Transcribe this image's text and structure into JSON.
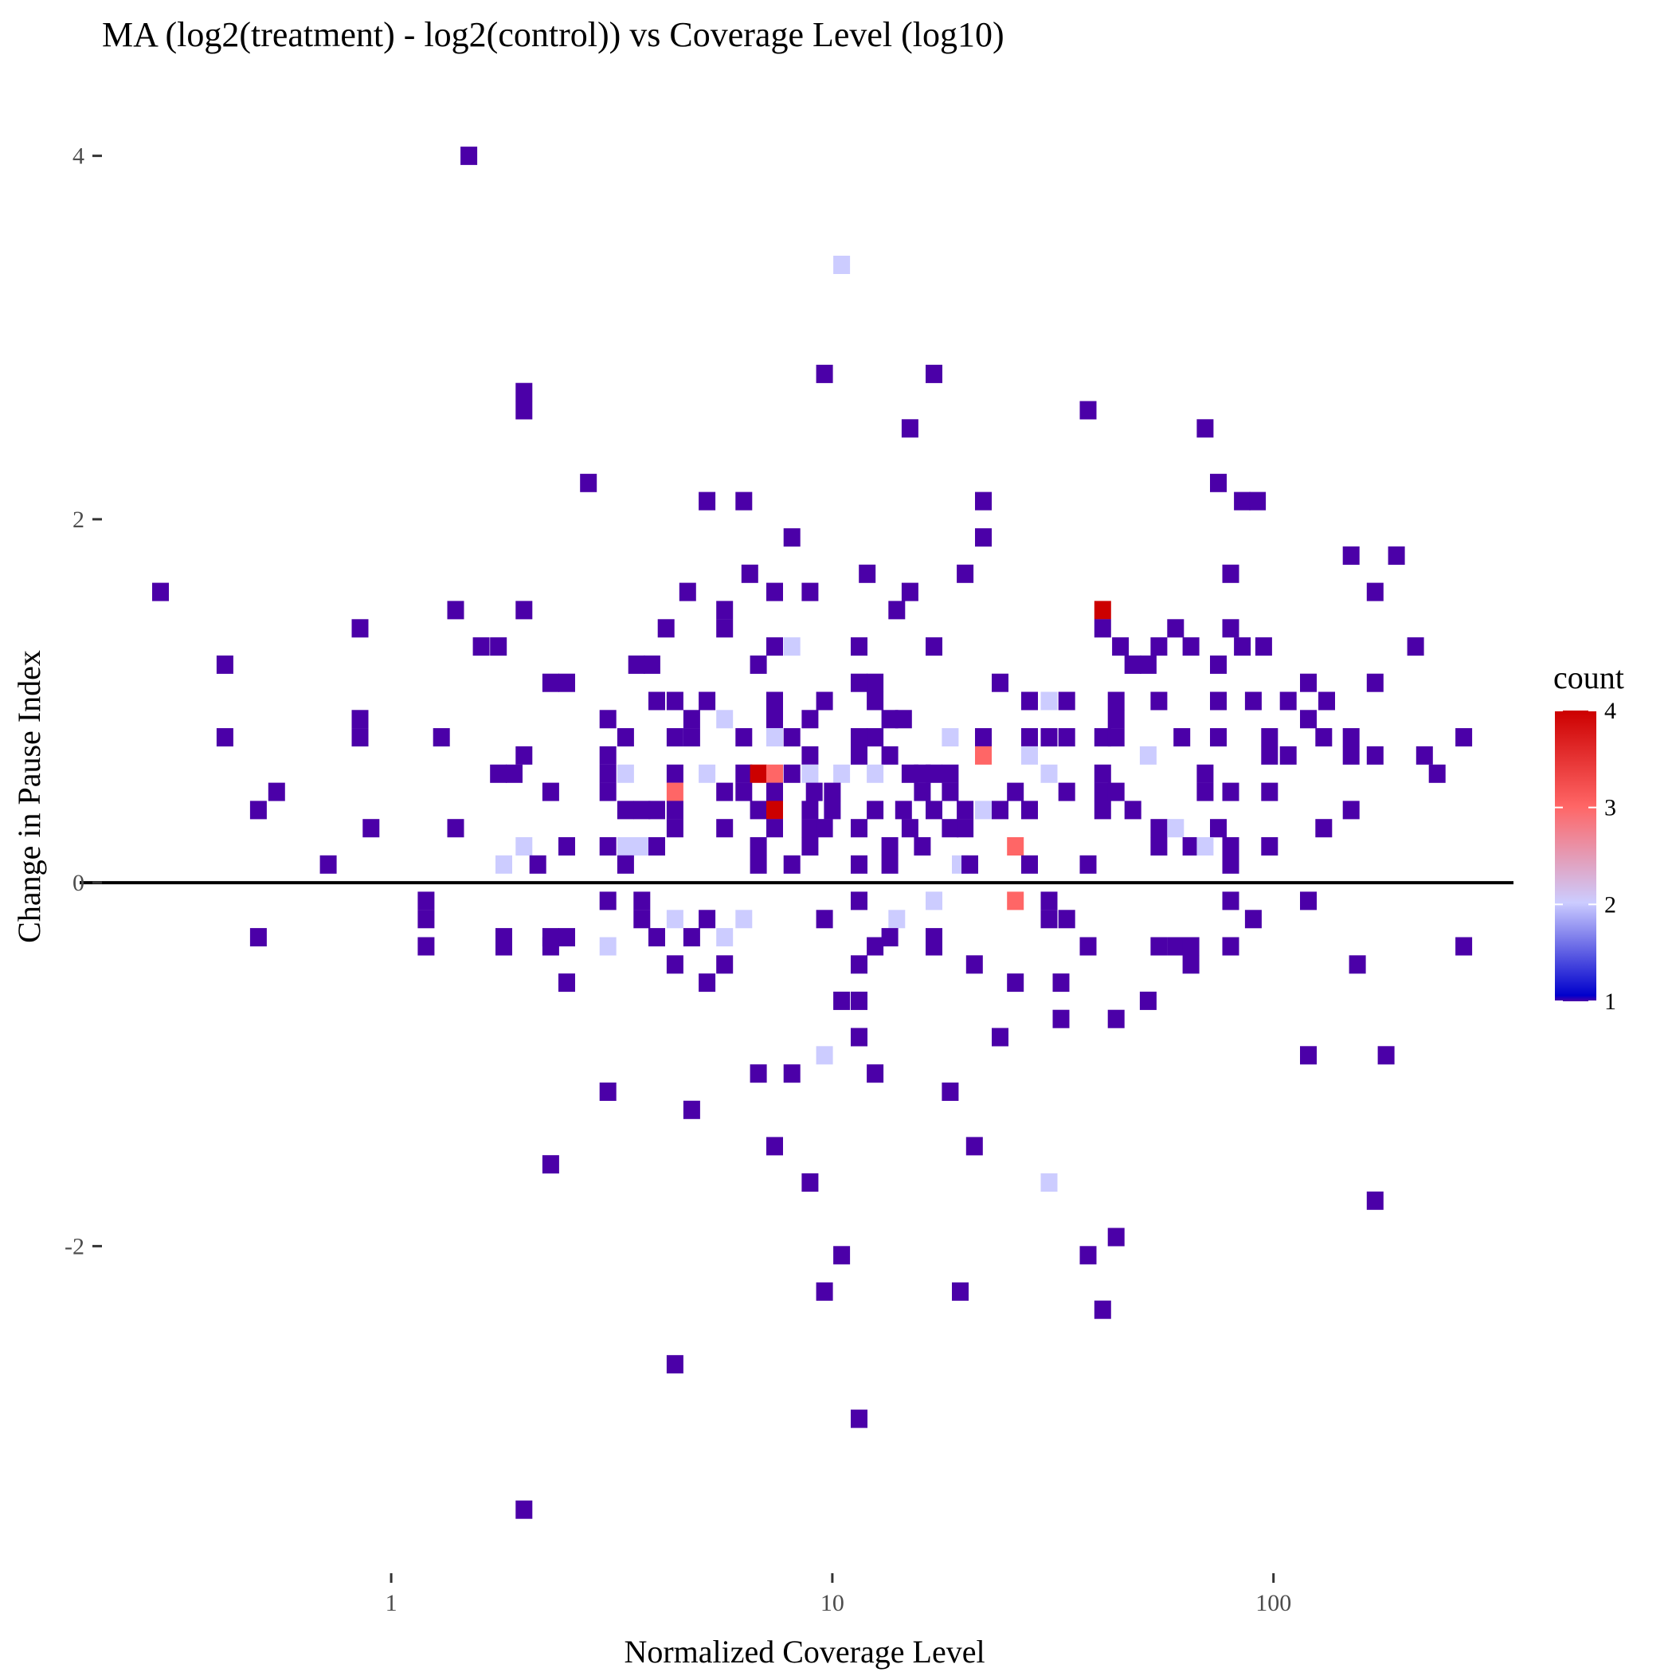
{
  "chart_data": {
    "type": "heatmap",
    "title": "MA (log2(treatment) - log2(control)) vs Coverage Level (log10)",
    "xlabel": "Normalized Coverage Level",
    "ylabel": "Change in Pause Index",
    "x_scale": "log10",
    "xlim": [
      0.2,
      350
    ],
    "ylim": [
      -3.8,
      4.2
    ],
    "x_ticks": [
      1,
      10,
      100
    ],
    "x_tick_labels": [
      "1",
      "10",
      "100"
    ],
    "y_ticks": [
      -2,
      0,
      2,
      4
    ],
    "y_tick_labels": [
      "-2",
      "0",
      "2",
      "4"
    ],
    "reference_line_y": 0,
    "grid": false,
    "legend": {
      "title": "count",
      "position": "right",
      "ticks": [
        1,
        2,
        3,
        4
      ],
      "tick_labels": [
        "1",
        "2",
        "3",
        "4"
      ],
      "colors": [
        "#4b00a8",
        "#0000cc",
        "#ccccff",
        "#ff6666",
        "#cc0000"
      ]
    },
    "cells": [
      [
        1.5,
        4.0,
        1
      ],
      [
        10.5,
        3.4,
        2
      ],
      [
        9.6,
        2.8,
        1
      ],
      [
        17,
        2.8,
        1
      ],
      [
        2,
        2.7,
        1
      ],
      [
        2,
        2.6,
        1
      ],
      [
        38,
        2.6,
        1
      ],
      [
        15,
        2.5,
        1
      ],
      [
        70,
        2.5,
        1
      ],
      [
        2.8,
        2.2,
        1
      ],
      [
        5.2,
        2.1,
        1
      ],
      [
        6.3,
        2.1,
        1
      ],
      [
        22,
        2.1,
        1
      ],
      [
        75,
        2.2,
        1
      ],
      [
        85,
        2.1,
        1
      ],
      [
        92,
        2.1,
        1
      ],
      [
        8.1,
        1.9,
        1
      ],
      [
        22,
        1.9,
        1
      ],
      [
        150,
        1.8,
        1
      ],
      [
        190,
        1.8,
        1
      ],
      [
        0.3,
        1.6,
        1
      ],
      [
        6.5,
        1.7,
        1
      ],
      [
        12,
        1.7,
        1
      ],
      [
        20,
        1.7,
        1
      ],
      [
        80,
        1.7,
        1
      ],
      [
        4.7,
        1.6,
        1
      ],
      [
        7.4,
        1.6,
        1
      ],
      [
        8.9,
        1.6,
        1
      ],
      [
        15,
        1.6,
        1
      ],
      [
        170,
        1.6,
        1
      ],
      [
        1.4,
        1.5,
        1
      ],
      [
        2,
        1.5,
        1
      ],
      [
        5.7,
        1.5,
        1
      ],
      [
        14,
        1.5,
        1
      ],
      [
        41,
        1.5,
        4
      ],
      [
        0.85,
        1.4,
        1
      ],
      [
        4.2,
        1.4,
        1
      ],
      [
        5.7,
        1.4,
        1
      ],
      [
        41,
        1.4,
        1
      ],
      [
        60,
        1.4,
        1
      ],
      [
        80,
        1.4,
        1
      ],
      [
        1.6,
        1.3,
        1
      ],
      [
        1.75,
        1.3,
        1
      ],
      [
        7.4,
        1.3,
        1
      ],
      [
        8.1,
        1.3,
        2
      ],
      [
        11.5,
        1.3,
        1
      ],
      [
        17,
        1.3,
        1
      ],
      [
        45,
        1.3,
        1
      ],
      [
        55,
        1.3,
        1
      ],
      [
        65,
        1.3,
        1
      ],
      [
        85,
        1.3,
        1
      ],
      [
        95,
        1.3,
        1
      ],
      [
        210,
        1.3,
        1
      ],
      [
        0.42,
        1.2,
        1
      ],
      [
        3.6,
        1.2,
        1
      ],
      [
        3.9,
        1.2,
        1
      ],
      [
        6.8,
        1.2,
        1
      ],
      [
        48,
        1.2,
        1
      ],
      [
        52,
        1.2,
        1
      ],
      [
        75,
        1.2,
        1
      ],
      [
        2.3,
        1.1,
        1
      ],
      [
        2.5,
        1.1,
        1
      ],
      [
        11.5,
        1.1,
        1
      ],
      [
        12.5,
        1.1,
        1
      ],
      [
        24,
        1.1,
        1
      ],
      [
        120,
        1.1,
        1
      ],
      [
        170,
        1.1,
        1
      ],
      [
        4.0,
        1.0,
        1
      ],
      [
        4.4,
        1.0,
        1
      ],
      [
        5.2,
        1.0,
        1
      ],
      [
        7.4,
        1.0,
        1
      ],
      [
        9.6,
        1.0,
        1
      ],
      [
        12.5,
        1.0,
        1
      ],
      [
        28,
        1.0,
        1
      ],
      [
        31,
        1.0,
        2
      ],
      [
        34,
        1.0,
        1
      ],
      [
        44,
        1.0,
        1
      ],
      [
        55,
        1.0,
        1
      ],
      [
        75,
        1.0,
        1
      ],
      [
        90,
        1.0,
        1
      ],
      [
        108,
        1.0,
        1
      ],
      [
        132,
        1.0,
        1
      ],
      [
        0.85,
        0.9,
        1
      ],
      [
        3.1,
        0.9,
        1
      ],
      [
        4.8,
        0.9,
        1
      ],
      [
        5.7,
        0.9,
        2
      ],
      [
        7.4,
        0.9,
        1
      ],
      [
        8.9,
        0.9,
        1
      ],
      [
        13.5,
        0.9,
        1
      ],
      [
        14.5,
        0.9,
        1
      ],
      [
        44,
        0.9,
        1
      ],
      [
        120,
        0.9,
        1
      ],
      [
        0.42,
        0.8,
        1
      ],
      [
        0.85,
        0.8,
        1
      ],
      [
        1.3,
        0.8,
        1
      ],
      [
        3.4,
        0.8,
        1
      ],
      [
        4.4,
        0.8,
        1
      ],
      [
        4.8,
        0.8,
        1
      ],
      [
        6.3,
        0.8,
        1
      ],
      [
        7.4,
        0.8,
        2
      ],
      [
        8.1,
        0.8,
        1
      ],
      [
        11.5,
        0.8,
        1
      ],
      [
        12.5,
        0.8,
        1
      ],
      [
        18.5,
        0.8,
        2
      ],
      [
        22,
        0.8,
        1
      ],
      [
        28,
        0.8,
        1
      ],
      [
        31,
        0.8,
        1
      ],
      [
        34,
        0.8,
        1
      ],
      [
        41,
        0.8,
        1
      ],
      [
        44,
        0.8,
        1
      ],
      [
        62,
        0.8,
        1
      ],
      [
        75,
        0.8,
        1
      ],
      [
        98,
        0.8,
        1
      ],
      [
        130,
        0.8,
        1
      ],
      [
        150,
        0.8,
        1
      ],
      [
        270,
        0.8,
        1
      ],
      [
        3.1,
        0.7,
        1
      ],
      [
        8.9,
        0.7,
        1
      ],
      [
        11.5,
        0.7,
        1
      ],
      [
        13.5,
        0.7,
        1
      ],
      [
        2,
        0.7,
        1
      ],
      [
        1.75,
        0.6,
        1
      ],
      [
        1.9,
        0.6,
        1
      ],
      [
        3.1,
        0.6,
        1
      ],
      [
        3.4,
        0.6,
        2
      ],
      [
        4.4,
        0.6,
        1
      ],
      [
        5.2,
        0.6,
        2
      ],
      [
        6.3,
        0.6,
        1
      ],
      [
        6.8,
        0.6,
        4
      ],
      [
        7.4,
        0.6,
        3
      ],
      [
        8.1,
        0.6,
        1
      ],
      [
        8.9,
        0.6,
        2
      ],
      [
        10.5,
        0.6,
        2
      ],
      [
        12.5,
        0.6,
        2
      ],
      [
        15,
        0.6,
        1
      ],
      [
        16,
        0.6,
        1
      ],
      [
        17,
        0.6,
        1
      ],
      [
        18.5,
        0.6,
        1
      ],
      [
        22,
        0.7,
        3
      ],
      [
        28,
        0.7,
        2
      ],
      [
        31,
        0.6,
        2
      ],
      [
        41,
        0.6,
        1
      ],
      [
        52,
        0.7,
        2
      ],
      [
        70,
        0.6,
        1
      ],
      [
        98,
        0.7,
        1
      ],
      [
        108,
        0.7,
        1
      ],
      [
        150,
        0.7,
        1
      ],
      [
        170,
        0.7,
        1
      ],
      [
        220,
        0.7,
        1
      ],
      [
        235,
        0.6,
        1
      ],
      [
        0.55,
        0.5,
        1
      ],
      [
        2.3,
        0.5,
        1
      ],
      [
        3.1,
        0.5,
        1
      ],
      [
        4.4,
        0.5,
        3
      ],
      [
        5.7,
        0.5,
        1
      ],
      [
        6.3,
        0.5,
        1
      ],
      [
        7.4,
        0.5,
        1
      ],
      [
        9.1,
        0.5,
        1
      ],
      [
        10,
        0.5,
        1
      ],
      [
        16,
        0.5,
        1
      ],
      [
        18.5,
        0.5,
        1
      ],
      [
        26,
        0.5,
        1
      ],
      [
        34,
        0.5,
        1
      ],
      [
        41,
        0.5,
        1
      ],
      [
        44,
        0.5,
        1
      ],
      [
        70,
        0.5,
        1
      ],
      [
        80,
        0.5,
        1
      ],
      [
        98,
        0.5,
        1
      ],
      [
        0.5,
        0.4,
        1
      ],
      [
        3.4,
        0.4,
        1
      ],
      [
        3.7,
        0.4,
        1
      ],
      [
        4.0,
        0.4,
        1
      ],
      [
        4.4,
        0.4,
        1
      ],
      [
        6.8,
        0.4,
        1
      ],
      [
        7.4,
        0.4,
        4
      ],
      [
        8.9,
        0.4,
        1
      ],
      [
        10,
        0.4,
        1
      ],
      [
        12.5,
        0.4,
        1
      ],
      [
        14.5,
        0.4,
        1
      ],
      [
        17,
        0.4,
        1
      ],
      [
        20,
        0.4,
        1
      ],
      [
        22,
        0.4,
        2
      ],
      [
        24,
        0.4,
        1
      ],
      [
        28,
        0.4,
        1
      ],
      [
        41,
        0.4,
        1
      ],
      [
        48,
        0.4,
        1
      ],
      [
        150,
        0.4,
        1
      ],
      [
        0.9,
        0.3,
        1
      ],
      [
        1.4,
        0.3,
        1
      ],
      [
        4.4,
        0.3,
        1
      ],
      [
        5.7,
        0.3,
        1
      ],
      [
        7.4,
        0.3,
        1
      ],
      [
        8.9,
        0.3,
        1
      ],
      [
        9.6,
        0.3,
        1
      ],
      [
        11.5,
        0.3,
        1
      ],
      [
        15,
        0.3,
        1
      ],
      [
        18.5,
        0.3,
        1
      ],
      [
        20,
        0.3,
        1
      ],
      [
        55,
        0.3,
        1
      ],
      [
        60,
        0.3,
        2
      ],
      [
        75,
        0.3,
        1
      ],
      [
        130,
        0.3,
        1
      ],
      [
        2,
        0.2,
        2
      ],
      [
        2.5,
        0.2,
        1
      ],
      [
        3.1,
        0.2,
        1
      ],
      [
        3.4,
        0.2,
        2
      ],
      [
        3.7,
        0.2,
        2
      ],
      [
        4.0,
        0.2,
        1
      ],
      [
        6.8,
        0.2,
        1
      ],
      [
        8.9,
        0.2,
        1
      ],
      [
        13.5,
        0.2,
        1
      ],
      [
        16,
        0.2,
        1
      ],
      [
        26,
        0.2,
        3
      ],
      [
        55,
        0.2,
        1
      ],
      [
        65,
        0.2,
        1
      ],
      [
        70,
        0.2,
        2
      ],
      [
        80,
        0.2,
        1
      ],
      [
        98,
        0.2,
        1
      ],
      [
        0.72,
        0.1,
        1
      ],
      [
        1.8,
        0.1,
        2
      ],
      [
        2.15,
        0.1,
        1
      ],
      [
        3.4,
        0.1,
        1
      ],
      [
        6.8,
        0.1,
        1
      ],
      [
        8.1,
        0.1,
        1
      ],
      [
        11.5,
        0.1,
        1
      ],
      [
        13.5,
        0.1,
        1
      ],
      [
        19.5,
        0.1,
        2
      ],
      [
        20.5,
        0.1,
        1
      ],
      [
        28,
        0.1,
        1
      ],
      [
        38,
        0.1,
        1
      ],
      [
        80,
        0.1,
        1
      ],
      [
        1.2,
        -0.1,
        1
      ],
      [
        3.1,
        -0.1,
        1
      ],
      [
        3.7,
        -0.1,
        1
      ],
      [
        11.5,
        -0.1,
        1
      ],
      [
        17,
        -0.1,
        2
      ],
      [
        26,
        -0.1,
        3
      ],
      [
        31,
        -0.1,
        1
      ],
      [
        80,
        -0.1,
        1
      ],
      [
        120,
        -0.1,
        1
      ],
      [
        1.2,
        -0.2,
        1
      ],
      [
        3.7,
        -0.2,
        1
      ],
      [
        4.4,
        -0.2,
        2
      ],
      [
        5.2,
        -0.2,
        1
      ],
      [
        6.3,
        -0.2,
        2
      ],
      [
        9.6,
        -0.2,
        1
      ],
      [
        14,
        -0.2,
        2
      ],
      [
        31,
        -0.2,
        1
      ],
      [
        34,
        -0.2,
        1
      ],
      [
        90,
        -0.2,
        1
      ],
      [
        0.5,
        -0.3,
        1
      ],
      [
        1.8,
        -0.3,
        1
      ],
      [
        2.3,
        -0.3,
        1
      ],
      [
        2.5,
        -0.3,
        1
      ],
      [
        4.0,
        -0.3,
        1
      ],
      [
        4.8,
        -0.3,
        1
      ],
      [
        5.7,
        -0.3,
        2
      ],
      [
        13.5,
        -0.3,
        1
      ],
      [
        17,
        -0.3,
        1
      ],
      [
        1.2,
        -0.35,
        1
      ],
      [
        1.8,
        -0.35,
        1
      ],
      [
        2.3,
        -0.35,
        1
      ],
      [
        3.1,
        -0.35,
        2
      ],
      [
        12.5,
        -0.35,
        1
      ],
      [
        17,
        -0.35,
        1
      ],
      [
        38,
        -0.35,
        1
      ],
      [
        55,
        -0.35,
        1
      ],
      [
        60,
        -0.35,
        1
      ],
      [
        65,
        -0.35,
        1
      ],
      [
        80,
        -0.35,
        1
      ],
      [
        270,
        -0.35,
        1
      ],
      [
        4.4,
        -0.45,
        1
      ],
      [
        5.7,
        -0.45,
        1
      ],
      [
        11.5,
        -0.45,
        1
      ],
      [
        21,
        -0.45,
        1
      ],
      [
        65,
        -0.45,
        1
      ],
      [
        155,
        -0.45,
        1
      ],
      [
        2.5,
        -0.55,
        1
      ],
      [
        5.2,
        -0.55,
        1
      ],
      [
        26,
        -0.55,
        1
      ],
      [
        33,
        -0.55,
        1
      ],
      [
        10.5,
        -0.65,
        1
      ],
      [
        11.5,
        -0.65,
        1
      ],
      [
        52,
        -0.65,
        1
      ],
      [
        33,
        -0.75,
        1
      ],
      [
        44,
        -0.75,
        1
      ],
      [
        11.5,
        -0.85,
        1
      ],
      [
        24,
        -0.85,
        1
      ],
      [
        9.6,
        -0.95,
        2
      ],
      [
        120,
        -0.95,
        1
      ],
      [
        180,
        -0.95,
        1
      ],
      [
        6.8,
        -1.05,
        1
      ],
      [
        8.1,
        -1.05,
        1
      ],
      [
        12.5,
        -1.05,
        1
      ],
      [
        3.1,
        -1.15,
        1
      ],
      [
        18.5,
        -1.15,
        1
      ],
      [
        4.8,
        -1.25,
        1
      ],
      [
        7.4,
        -1.45,
        1
      ],
      [
        21,
        -1.45,
        1
      ],
      [
        2.3,
        -1.55,
        1
      ],
      [
        8.9,
        -1.65,
        1
      ],
      [
        31,
        -1.65,
        2
      ],
      [
        170,
        -1.75,
        1
      ],
      [
        44,
        -1.95,
        1
      ],
      [
        10.5,
        -2.05,
        1
      ],
      [
        38,
        -2.05,
        1
      ],
      [
        9.6,
        -2.25,
        1
      ],
      [
        19.5,
        -2.25,
        1
      ],
      [
        41,
        -2.35,
        1
      ],
      [
        4.4,
        -2.65,
        1
      ],
      [
        11.5,
        -2.95,
        1
      ],
      [
        2,
        -3.45,
        1
      ]
    ]
  }
}
